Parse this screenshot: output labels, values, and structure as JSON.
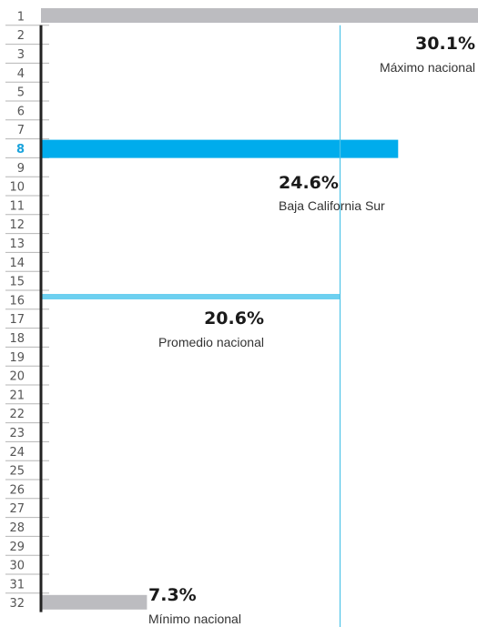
{
  "chart_data": {
    "type": "bar",
    "orientation": "horizontal",
    "categories": [
      "1",
      "2",
      "3",
      "4",
      "5",
      "6",
      "7",
      "8",
      "9",
      "10",
      "11",
      "12",
      "13",
      "14",
      "15",
      "16",
      "17",
      "18",
      "19",
      "20",
      "21",
      "22",
      "23",
      "24",
      "25",
      "26",
      "27",
      "28",
      "29",
      "30",
      "31",
      "32"
    ],
    "highlighted_rank": "8",
    "bars": [
      {
        "rank": 1,
        "value": 30.1,
        "role": "max"
      },
      {
        "rank": 8,
        "value": 24.6,
        "role": "highlight"
      },
      {
        "rank": 16,
        "value": 20.6,
        "role": "average"
      },
      {
        "rank": 32,
        "value": 7.3,
        "role": "min"
      }
    ],
    "reference_line": {
      "value": 20.6
    },
    "annotations": [
      {
        "id": "max",
        "value_label": "30.1%",
        "caption": "Máximo nacional"
      },
      {
        "id": "highlight",
        "value_label": "24.6%",
        "caption": "Baja California Sur"
      },
      {
        "id": "average",
        "value_label": "20.6%",
        "caption": "Promedio nacional"
      },
      {
        "id": "min",
        "value_label": "7.3%",
        "caption": "Mínimo nacional"
      }
    ],
    "xlim": [
      0,
      30.1
    ],
    "grid": false,
    "colors": {
      "max": "#bcbcc0",
      "min": "#bcbcc0",
      "highlight": "#00acec",
      "average": "#6dd0f0",
      "reference_line": "#4fc3e8",
      "axis": "#222222",
      "highlight_label": "#1aa3dc"
    }
  }
}
